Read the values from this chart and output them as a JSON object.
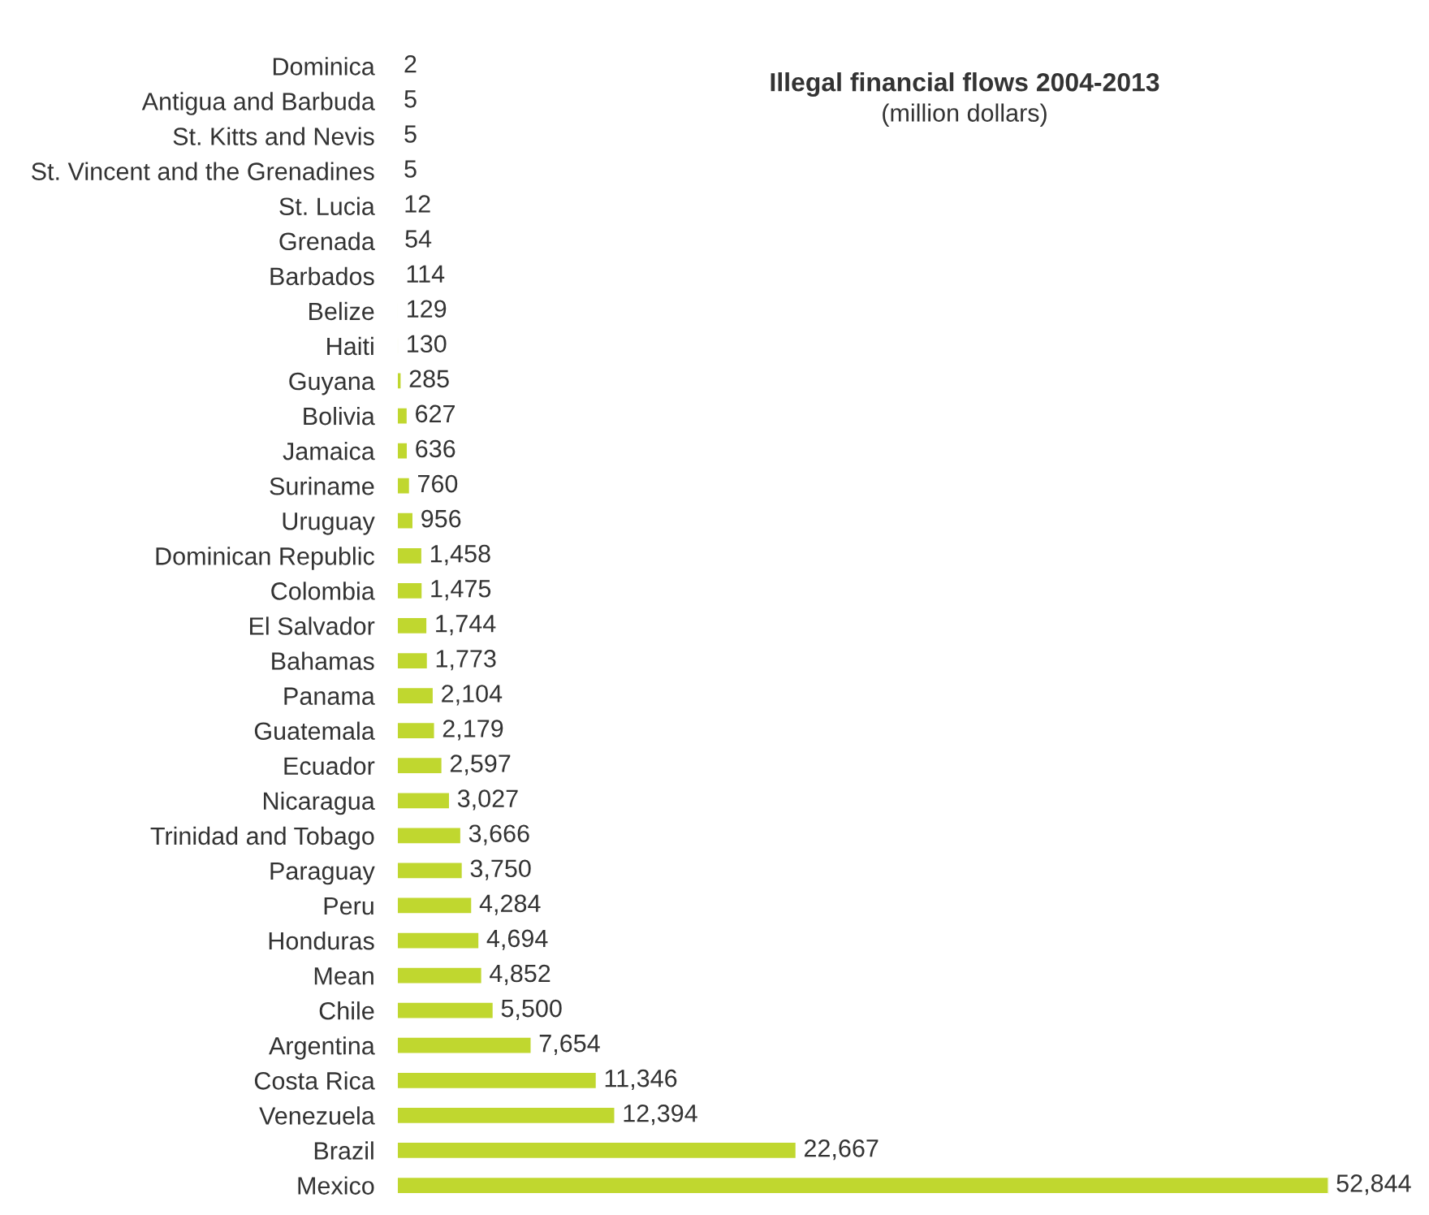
{
  "chart_data": {
    "type": "bar",
    "orientation": "horizontal",
    "title": "Illegal financial flows 2004-2013",
    "subtitle": "(million dollars)",
    "data_labels": true,
    "grid": false,
    "legend": false,
    "categories": [
      "Dominica",
      "Antigua and Barbuda",
      "St. Kitts and Nevis",
      "St. Vincent and the Grenadines",
      "St. Lucia",
      "Grenada",
      "Barbados",
      "Belize",
      "Haiti",
      "Guyana",
      "Bolivia",
      "Jamaica",
      "Suriname",
      "Uruguay",
      "Dominican Republic",
      "Colombia",
      "El Salvador",
      "Bahamas",
      "Panama",
      "Guatemala",
      "Ecuador",
      "Nicaragua",
      "Trinidad and Tobago",
      "Paraguay",
      "Peru",
      "Honduras",
      "Mean",
      "Chile",
      "Argentina",
      "Costa Rica",
      "Venezuela",
      "Brazil",
      "Mexico"
    ],
    "values": [
      2,
      5,
      5,
      5,
      12,
      54,
      114,
      129,
      130,
      285,
      627,
      636,
      760,
      956,
      1458,
      1475,
      1744,
      1773,
      2104,
      2179,
      2597,
      3027,
      3666,
      3750,
      4284,
      4694,
      4852,
      5500,
      7654,
      11346,
      12394,
      22667,
      52844
    ],
    "value_labels": [
      "2",
      "5",
      "5",
      "5",
      "12",
      "54",
      "114",
      "129",
      "130",
      "285",
      "627",
      "636",
      "760",
      "956",
      "1,458",
      "1,475",
      "1,744",
      "1,773",
      "2,104",
      "2,179",
      "2,597",
      "3,027",
      "3,666",
      "3,750",
      "4,284",
      "4,694",
      "4,852",
      "5,500",
      "7,654",
      "11,346",
      "12,394",
      "22,667",
      "52,844"
    ],
    "color": "#c0d72f"
  }
}
